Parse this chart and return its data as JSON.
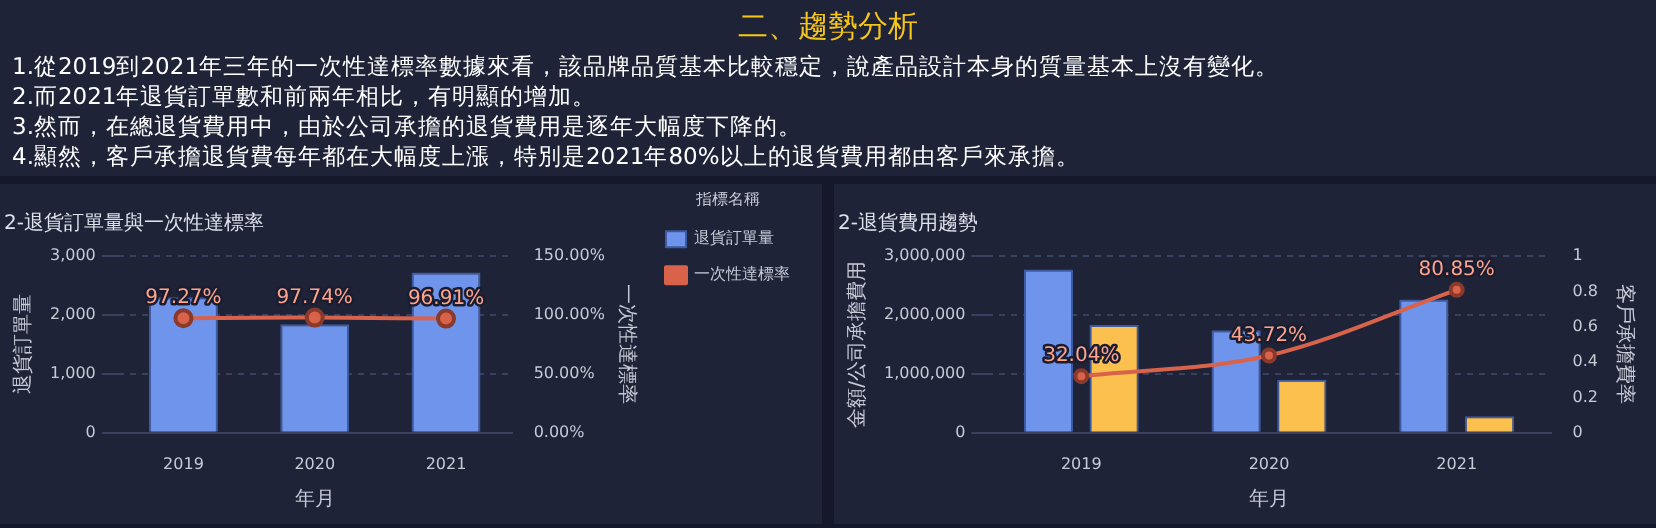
{
  "chart_data": [
    {
      "type": "other",
      "title": "二、趨勢分析",
      "annotations": [
        "1.從2019到2021年三年的一次性達標率數據來看，該品牌品質基本比較穩定，說產品設計本身的質量基本上沒有變化。",
        "2.而2021年退貨訂單數和前兩年相比，有明顯的增加。",
        "3.然而，在總退貨費用中，由於公司承擔的退貨費用是逐年大幅度下降的。",
        "4.顯然，客戶承擔退貨費每年都在大幅度上漲，特別是2021年80%以上的退貨費用都由客戶來承擔。"
      ]
    },
    {
      "type": "bar",
      "title": "2-退貨訂單量與一次性達標率",
      "xlabel": "年月",
      "ylabel": "退貨訂單量",
      "y2label": "一次性達標率",
      "legend_title": "指標名稱",
      "legend": "top right",
      "grid": "y",
      "categories": [
        "2019",
        "2020",
        "2021"
      ],
      "ylim": [
        0,
        3000
      ],
      "yticks": [
        0,
        {
          "value": 1000,
          "label": "1,000"
        },
        {
          "value": 2000,
          "label": "2,000"
        },
        {
          "value": 3000,
          "label": "3,000"
        }
      ],
      "y2lim": [
        0,
        150
      ],
      "y2ticks": [
        {
          "value": 0,
          "label": "0.00%"
        },
        {
          "value": 50,
          "label": "50.00%"
        },
        {
          "value": 100,
          "label": "100.00%"
        },
        {
          "value": 150,
          "label": "150.00%"
        }
      ],
      "marker": "circle",
      "series": [
        {
          "name": "退貨訂單量",
          "type": "bar",
          "color": "#6f94ec",
          "values": [
            2300,
            1840,
            2720
          ]
        },
        {
          "name": "一次性達標率",
          "type": "line",
          "axis": "y2",
          "color": "#d8634a",
          "values": [
            97.27,
            97.74,
            96.91
          ],
          "value_labels": [
            "97.27%",
            "97.74%",
            "96.91%"
          ]
        }
      ]
    },
    {
      "type": "bar",
      "title": "2-退貨費用趨勢",
      "xlabel": "年月",
      "ylabel": "金額/公司承擔費用",
      "y2label": "客戶承擔費率",
      "legend": false,
      "grid": "y",
      "categories": [
        "2019",
        "2020",
        "2021"
      ],
      "ylim": [
        0,
        3000000
      ],
      "yticks": [
        0,
        {
          "value": 1000000,
          "label": "1,000,000"
        },
        {
          "value": 2000000,
          "label": "2,000,000"
        },
        {
          "value": 3000000,
          "label": "3,000,000"
        }
      ],
      "y2lim": [
        0,
        1
      ],
      "y2ticks": [
        0,
        0.2,
        0.4,
        0.6,
        0.8,
        1
      ],
      "marker": "circle",
      "series": [
        {
          "type": "bar",
          "color": "#6f94ec",
          "values": [
            2770000,
            1740000,
            2260000
          ]
        },
        {
          "type": "bar",
          "color": "#fcc04f",
          "values": [
            1830000,
            900000,
            280000
          ]
        },
        {
          "type": "line",
          "axis": "y2",
          "color": "#d8634a",
          "values": [
            0.3204,
            0.4372,
            0.8085
          ],
          "value_labels": [
            "32.04%",
            "43.72%",
            "80.85%"
          ]
        }
      ]
    }
  ]
}
